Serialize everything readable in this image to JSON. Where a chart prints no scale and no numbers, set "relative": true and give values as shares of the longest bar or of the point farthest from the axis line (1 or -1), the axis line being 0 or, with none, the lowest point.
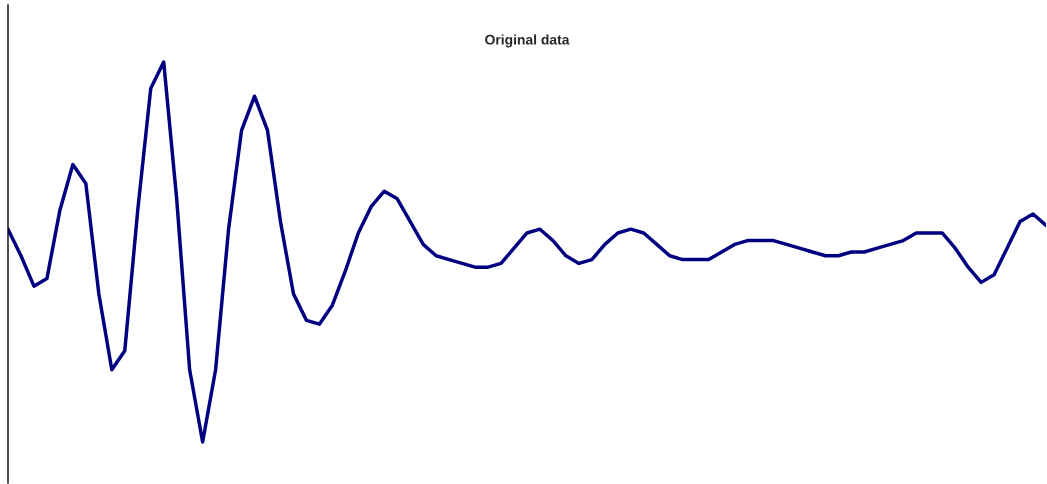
{
  "chart_data": {
    "type": "line",
    "title": "Original data",
    "relative": true,
    "grid": false,
    "legend": false,
    "categories": [
      null,
      null,
      null,
      null,
      null,
      null,
      null,
      null,
      null,
      null,
      null,
      null,
      null,
      null,
      null,
      null,
      null,
      null,
      null,
      null,
      null,
      null,
      null,
      null,
      null,
      null,
      null,
      null,
      null,
      null,
      null,
      null,
      null,
      null,
      null,
      null,
      null,
      null,
      null,
      null,
      null,
      null,
      null,
      null,
      null,
      null,
      null,
      null,
      null,
      null,
      null,
      null,
      null,
      null,
      null,
      null,
      null,
      null,
      null,
      null,
      null,
      null,
      null,
      null,
      null,
      null,
      null,
      null,
      null,
      null,
      null,
      null,
      null,
      null,
      null,
      null,
      null,
      null,
      null,
      null,
      null
    ],
    "series": [
      {
        "color": "#000080",
        "values": [
          0.56,
          0.49,
          0.41,
          0.43,
          0.61,
          0.73,
          0.68,
          0.39,
          0.19,
          0.24,
          0.61,
          0.93,
          1.0,
          0.64,
          0.19,
          0,
          0.19,
          0.56,
          0.82,
          0.91,
          0.82,
          0.58,
          0.39,
          0.32,
          0.31,
          0.36,
          0.45,
          0.55,
          0.62,
          0.66,
          0.64,
          0.58,
          0.52,
          0.49,
          0.48,
          0.47,
          0.46,
          0.46,
          0.47,
          0.51,
          0.55,
          0.56,
          0.53,
          0.49,
          0.47,
          0.48,
          0.52,
          0.55,
          0.56,
          0.55,
          0.52,
          0.49,
          0.48,
          0.48,
          0.48,
          0.5,
          0.52,
          0.53,
          0.53,
          0.53,
          0.52,
          0.51,
          0.5,
          0.49,
          0.49,
          0.5,
          0.5,
          0.51,
          0.52,
          0.53,
          0.55,
          0.55,
          0.55,
          0.51,
          0.46,
          0.42,
          0.44,
          0.51,
          0.58,
          0.6,
          0.57
        ]
      }
    ]
  }
}
